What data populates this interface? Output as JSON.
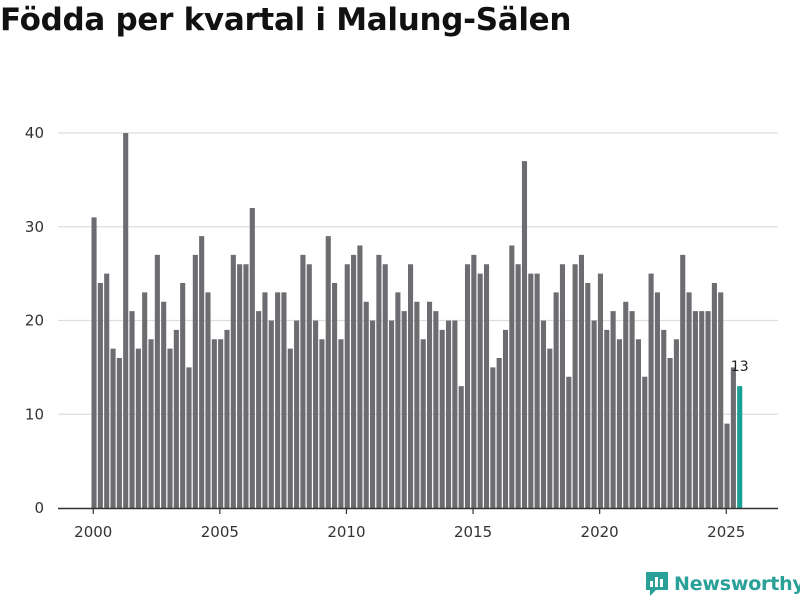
{
  "chart_data": {
    "type": "bar",
    "title": "Födda per kvartal i Malung-Sälen",
    "xlabel": "",
    "ylabel": "",
    "ylim": [
      0,
      40
    ],
    "yticks": [
      0,
      10,
      20,
      30,
      40
    ],
    "xticks": [
      "2000",
      "2005",
      "2010",
      "2015",
      "2020",
      "2025"
    ],
    "start": "2000 Q1",
    "frequency": "quarterly",
    "values": [
      31,
      24,
      25,
      17,
      16,
      40,
      21,
      17,
      23,
      18,
      27,
      22,
      17,
      19,
      24,
      15,
      27,
      29,
      23,
      18,
      18,
      19,
      27,
      26,
      26,
      32,
      21,
      23,
      20,
      23,
      23,
      17,
      20,
      27,
      26,
      20,
      18,
      29,
      24,
      18,
      26,
      27,
      28,
      22,
      20,
      27,
      26,
      20,
      23,
      21,
      26,
      22,
      18,
      22,
      21,
      19,
      20,
      20,
      13,
      26,
      27,
      25,
      26,
      15,
      16,
      19,
      28,
      26,
      37,
      25,
      25,
      20,
      17,
      23,
      26,
      14,
      26,
      27,
      24,
      20,
      25,
      19,
      21,
      18,
      22,
      21,
      18,
      14,
      25,
      23,
      19,
      16,
      18,
      27,
      23,
      21,
      21,
      21,
      24,
      23,
      9,
      15,
      13
    ],
    "annotations": [
      {
        "index": 102,
        "text": "13"
      }
    ],
    "colors": {
      "bar": "#6d6c70",
      "highlight": "#17a093",
      "grid": "#dedede",
      "axis": "#333333"
    }
  },
  "brand": {
    "name": "Newsworthy",
    "icon": "newsworthy-logo-icon",
    "color": "#2aa198"
  }
}
